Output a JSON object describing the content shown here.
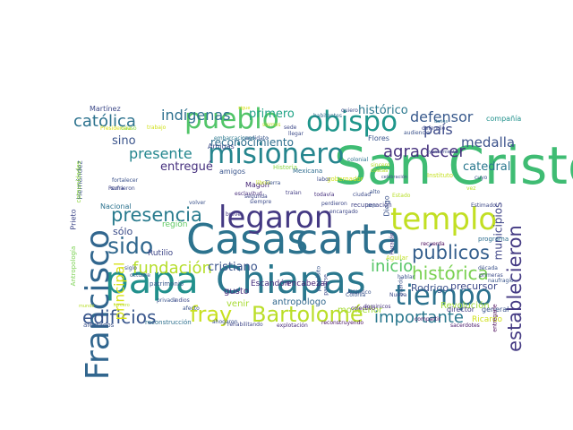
{
  "words": [
    {
      "text": "San Cristóbal",
      "color": "#3fbc73"
    },
    {
      "text": "Casas",
      "color": "#2c738e"
    },
    {
      "text": "carta",
      "color": "#2d708e"
    },
    {
      "text": "papa",
      "color": "#21908c"
    },
    {
      "text": "Chiapas",
      "color": "#2a788e"
    },
    {
      "text": "Francisco",
      "color": "#31668e"
    },
    {
      "text": "templo",
      "color": "#c2df23"
    },
    {
      "text": "legaron",
      "color": "#443983"
    },
    {
      "text": "misionero",
      "color": "#25858e"
    },
    {
      "text": "pueblo",
      "color": "#52c569"
    },
    {
      "text": "obispo",
      "color": "#1f968b"
    },
    {
      "text": "tiempo",
      "color": "#2c728e"
    },
    {
      "text": "sido",
      "color": "#31688e"
    },
    {
      "text": "fray",
      "color": "#c8e020"
    },
    {
      "text": "Bartolomé",
      "color": "#bade28"
    },
    {
      "text": "presencia",
      "color": "#297b8e"
    },
    {
      "text": "establecieron",
      "color": "#443a83"
    },
    {
      "text": "públicos",
      "color": "#355f8d"
    },
    {
      "text": "histórica",
      "color": "#7ad151"
    },
    {
      "text": "edificios",
      "color": "#39568c"
    },
    {
      "text": "importante",
      "color": "#2a788e"
    },
    {
      "text": "agradecer",
      "color": "#46327e"
    },
    {
      "text": "fundación",
      "color": "#b5de2b"
    },
    {
      "text": "católica",
      "color": "#2c728e"
    },
    {
      "text": "pueblo",
      "color": "#52c569"
    },
    {
      "text": "inicio",
      "color": "#56c667"
    },
    {
      "text": "presente",
      "color": "#24868e"
    },
    {
      "text": "indígenas",
      "color": "#2d708e"
    },
    {
      "text": "defensor",
      "color": "#38598c"
    },
    {
      "text": "país",
      "color": "#3e4c8a"
    },
    {
      "text": "medalla",
      "color": "#3b528b"
    },
    {
      "text": "principal",
      "color": "#d8e219"
    },
    {
      "text": "cristiano",
      "color": "#3a548c"
    },
    {
      "text": "reconocimiento",
      "color": "#2e6e8e"
    },
    {
      "text": "sino",
      "color": "#3a538b"
    },
    {
      "text": "entregué",
      "color": "#46307e"
    },
    {
      "text": "primero",
      "color": "#20a386"
    },
    {
      "text": "histórico",
      "color": "#2a788e"
    },
    {
      "text": "municipios",
      "color": "#404688"
    },
    {
      "text": "sólo",
      "color": "#3d4e8a"
    },
    {
      "text": "catedral",
      "color": "#2a788e"
    },
    {
      "text": "Rodrigo",
      "color": "#3b528b"
    },
    {
      "text": "precursor",
      "color": "#3e4989"
    },
    {
      "text": "Revolución",
      "color": "#9fda3a"
    },
    {
      "text": "antropólogo",
      "color": "#31688e"
    },
    {
      "text": "monseñor",
      "color": "#a5db36"
    },
    {
      "text": "venir",
      "color": "#a8db34"
    },
    {
      "text": "gusto",
      "color": "#472d7b"
    },
    {
      "text": "encabezar",
      "color": "#482374"
    },
    {
      "text": "Escandón",
      "color": "#46307e"
    },
    {
      "text": "Rutilio",
      "color": "#3f4788"
    },
    {
      "text": "región",
      "color": "#5ec962"
    },
    {
      "text": "Nacional",
      "color": "#2c728e"
    },
    {
      "text": "Martínez",
      "color": "#3e4a89"
    },
    {
      "text": "Hernández",
      "color": "#3b528b"
    },
    {
      "text": "Prieto",
      "color": "#3f4889"
    },
    {
      "text": "Antropología",
      "color": "#7ad151"
    },
    {
      "text": "comunidades",
      "color": "#90d743"
    },
    {
      "text": "Diego",
      "color": "#3b528b"
    },
    {
      "text": "Ricardo",
      "color": "#d0e11c"
    },
    {
      "text": "director",
      "color": "#433e85"
    },
    {
      "text": "general",
      "color": "#3a548c"
    },
    {
      "text": "Aguilar",
      "color": "#c0df25"
    },
    {
      "text": "Historia",
      "color": "#8bd646"
    },
    {
      "text": "Magón",
      "color": "#482878"
    },
    {
      "text": "amigos",
      "color": "#39558c"
    },
    {
      "text": "Amigas",
      "color": "#3e4c8a"
    },
    {
      "text": "Flores",
      "color": "#3a548c"
    },
    {
      "text": "recuperación",
      "color": "#414487"
    },
    {
      "text": "reconstrucción",
      "color": "#2d708e"
    },
    {
      "text": "afectados",
      "color": "#3b528b"
    },
    {
      "text": "colectivo",
      "color": "#482173"
    },
    {
      "text": "compartir",
      "color": "#471365"
    },
    {
      "text": "sacerdotes",
      "color": "#48186a"
    },
    {
      "text": "compañía",
      "color": "#21918c"
    },
    {
      "text": "recuerda",
      "color": "#440154"
    },
    {
      "text": "programa",
      "color": "#2e6e8e"
    },
    {
      "text": "patrimonio",
      "color": "#38588c"
    },
    {
      "text": "Mexicana",
      "color": "#2f6c8e"
    },
    {
      "text": "Instituto",
      "color": "#c5e021"
    },
    {
      "text": "sismos",
      "color": "#b8de29"
    },
    {
      "text": "daños",
      "color": "#2d708e"
    },
    {
      "text": "reconstruyendo",
      "color": "#471063"
    },
    {
      "text": "explotación",
      "color": "#472c7a"
    },
    {
      "text": "rehabilitando",
      "color": "#3f4788"
    },
    {
      "text": "habitantes",
      "color": "#2e6e8e"
    },
    {
      "text": "encargado",
      "color": "#3f4889"
    },
    {
      "text": "gobernador",
      "color": "#d0e11c"
    },
    {
      "text": "perdieron",
      "color": "#3e4989"
    },
    {
      "text": "labor",
      "color": "#3e4c8a"
    },
    {
      "text": "todavía",
      "color": "#46307e"
    },
    {
      "text": "traían",
      "color": "#433e85"
    },
    {
      "text": "libros",
      "color": "#c5e021"
    },
    {
      "text": "candidato",
      "color": "#39558c"
    },
    {
      "text": "embarcaciones",
      "color": "#2a788e"
    },
    {
      "text": "Presidencia",
      "color": "#dde318"
    },
    {
      "text": "causó",
      "color": "#8bd646"
    },
    {
      "text": "trabajo",
      "color": "#d0e11c"
    },
    {
      "text": "sede",
      "color": "#3e4989"
    },
    {
      "text": "llegar",
      "color": "#3e4c8a"
    },
    {
      "text": "colonial",
      "color": "#2c728e"
    },
    {
      "text": "sincero",
      "color": "#b8de29"
    },
    {
      "text": "Atlántico",
      "color": "#3b528b"
    },
    {
      "text": "Colonia",
      "color": "#3a548c"
    },
    {
      "text": "dominicos",
      "color": "#46337f"
    },
    {
      "text": "Nueva",
      "color": "#3e4c8a"
    },
    {
      "text": "hablar",
      "color": "#3a548c"
    },
    {
      "text": "afecto",
      "color": "#3b528b"
    },
    {
      "text": "volver",
      "color": "#3b528b"
    },
    {
      "text": "breve",
      "color": "#443983"
    },
    {
      "text": "esclavitud",
      "color": "#472d7b"
    },
    {
      "text": "segunda",
      "color": "#3f4889"
    },
    {
      "text": "siempre",
      "color": "#3e4c8a"
    },
    {
      "text": "Estimado",
      "color": "#3e4989"
    },
    {
      "text": "década",
      "color": "#3b528b"
    },
    {
      "text": "primeras",
      "color": "#3e4c8a"
    },
    {
      "text": "naufragio",
      "color": "#39558c"
    },
    {
      "text": "privada",
      "color": "#3a548c"
    },
    {
      "text": "indios",
      "color": "#3e4989"
    },
    {
      "text": "siglo",
      "color": "#3b528b"
    },
    {
      "text": "Roma",
      "color": "#414487"
    },
    {
      "text": "octubre",
      "color": "#39558c"
    },
    {
      "text": "tercero",
      "color": "#b8de29"
    },
    {
      "text": "fortalecer",
      "color": "#3b528b"
    },
    {
      "text": "sufrieron",
      "color": "#3e4c8a"
    },
    {
      "text": "audiencia",
      "color": "#3b528b"
    },
    {
      "text": "defendió",
      "color": "#3e4c8a"
    },
    {
      "text": "ahogaron",
      "color": "#3b528b"
    },
    {
      "text": "quiero",
      "color": "#3e4c8a"
    },
    {
      "text": "cuyo",
      "color": "#3b528b"
    },
    {
      "text": "vez",
      "color": "#b8de29"
    },
    {
      "text": "entregarle",
      "color": "#440154"
    },
    {
      "text": "guardo",
      "color": "#3b528b"
    },
    {
      "text": "Huracán",
      "color": "#46307e"
    },
    {
      "text": "propósito",
      "color": "#39558c"
    },
    {
      "text": "pasarse",
      "color": "#3e4c8a"
    },
    {
      "text": "alto",
      "color": "#3b528b"
    },
    {
      "text": "mundo",
      "color": "#b8de29"
    },
    {
      "text": "ayuntamiento",
      "color": "#3e4c8a"
    },
    {
      "text": "Tierra",
      "color": "#3b528b"
    },
    {
      "text": "costas",
      "color": "#b8de29"
    },
    {
      "text": "celebración",
      "color": "#3e4c8a"
    },
    {
      "text": "sigue",
      "color": "#dde318"
    },
    {
      "text": "dejo",
      "color": "#3b528b"
    },
    {
      "text": "ciudad",
      "color": "#3e4c8a"
    },
    {
      "text": "Estado",
      "color": "#b8de29"
    }
  ]
}
